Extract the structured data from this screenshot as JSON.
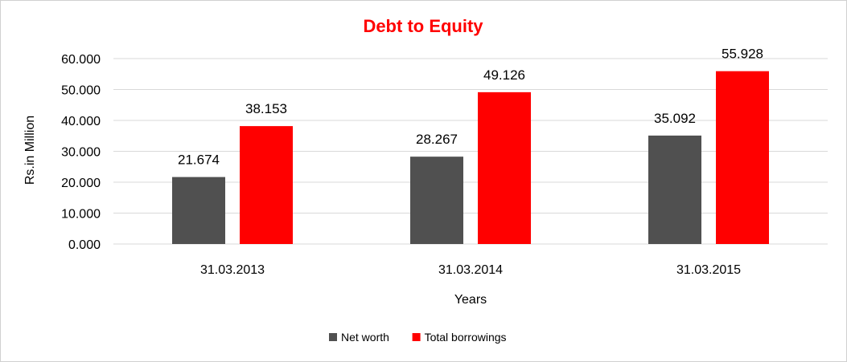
{
  "chart_data": {
    "type": "bar",
    "title": "Debt to Equity",
    "title_color": "#ff0000",
    "xlabel": "Years",
    "ylabel": "Rs.in Million",
    "categories": [
      "31.03.2013",
      "31.03.2014",
      "31.03.2015"
    ],
    "series": [
      {
        "name": "Net worth",
        "color": "#505050",
        "values": [
          21.674,
          28.267,
          35.092
        ],
        "labels": [
          "21.674",
          "28.267",
          "35.092"
        ]
      },
      {
        "name": "Total borrowings",
        "color": "#ff0000",
        "values": [
          38.153,
          49.126,
          55.928
        ],
        "labels": [
          "38.153",
          "49.126",
          "55.928"
        ]
      }
    ],
    "ylim": [
      0,
      60
    ],
    "yticks": [
      0,
      10,
      20,
      30,
      40,
      50,
      60
    ],
    "ytick_labels": [
      "0.000",
      "10.000",
      "20.000",
      "30.000",
      "40.000",
      "50.000",
      "60.000"
    ],
    "grid": true,
    "grid_color": "#d9d9d9",
    "legend_position": "bottom"
  }
}
